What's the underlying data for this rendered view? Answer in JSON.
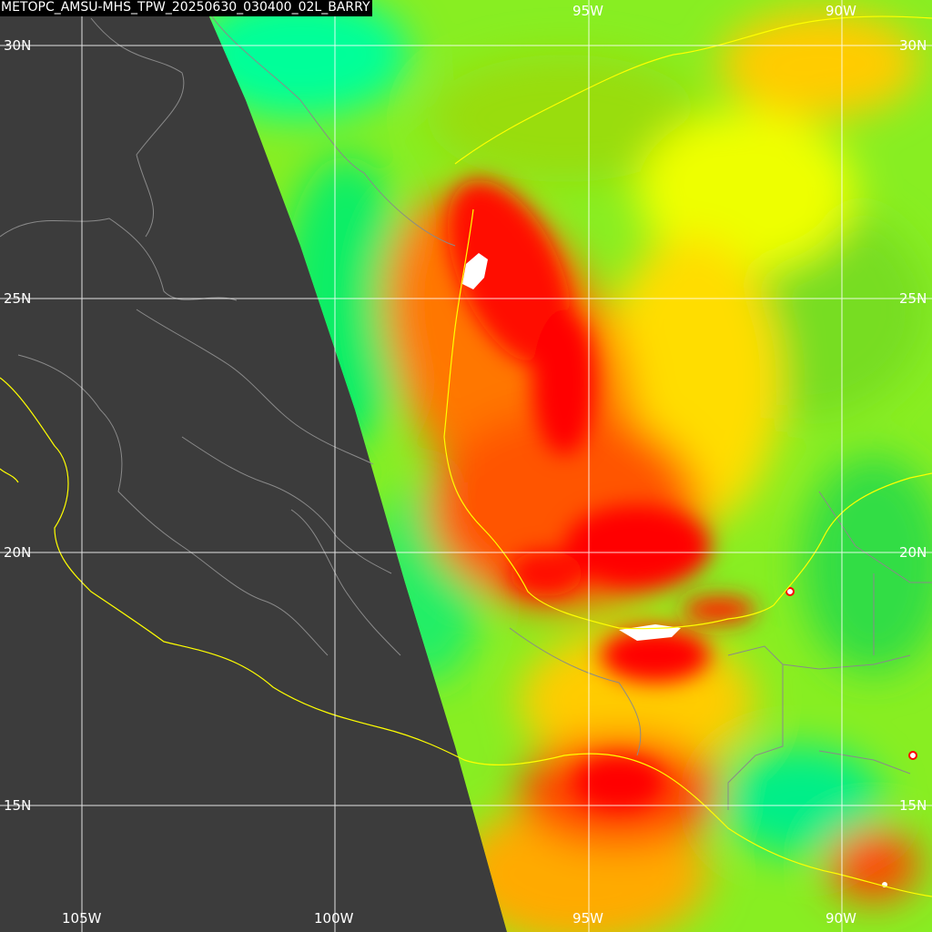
{
  "title": "METOPC_AMSU-MHS_TPW_20250630_030400_02L_BARRY",
  "grid": {
    "lat_labels": [
      "30N",
      "25N",
      "20N",
      "15N"
    ],
    "lat_labels_right": [
      "30N",
      "25N",
      "20N",
      "15N"
    ],
    "lon_labels_bottom": [
      "105W",
      "100W",
      "95W",
      "90W"
    ],
    "lon_labels_top": [
      "95W",
      "90W"
    ]
  },
  "colors": {
    "background": "#3c3c3c",
    "grid": "#ffffff",
    "coastline": "#ffff00",
    "borders": "#8a8a8a",
    "tpw_low": "#00ff88",
    "tpw_mid": "#ffff00",
    "tpw_high": "#ff0000",
    "tpw_max": "#ffffff"
  }
}
